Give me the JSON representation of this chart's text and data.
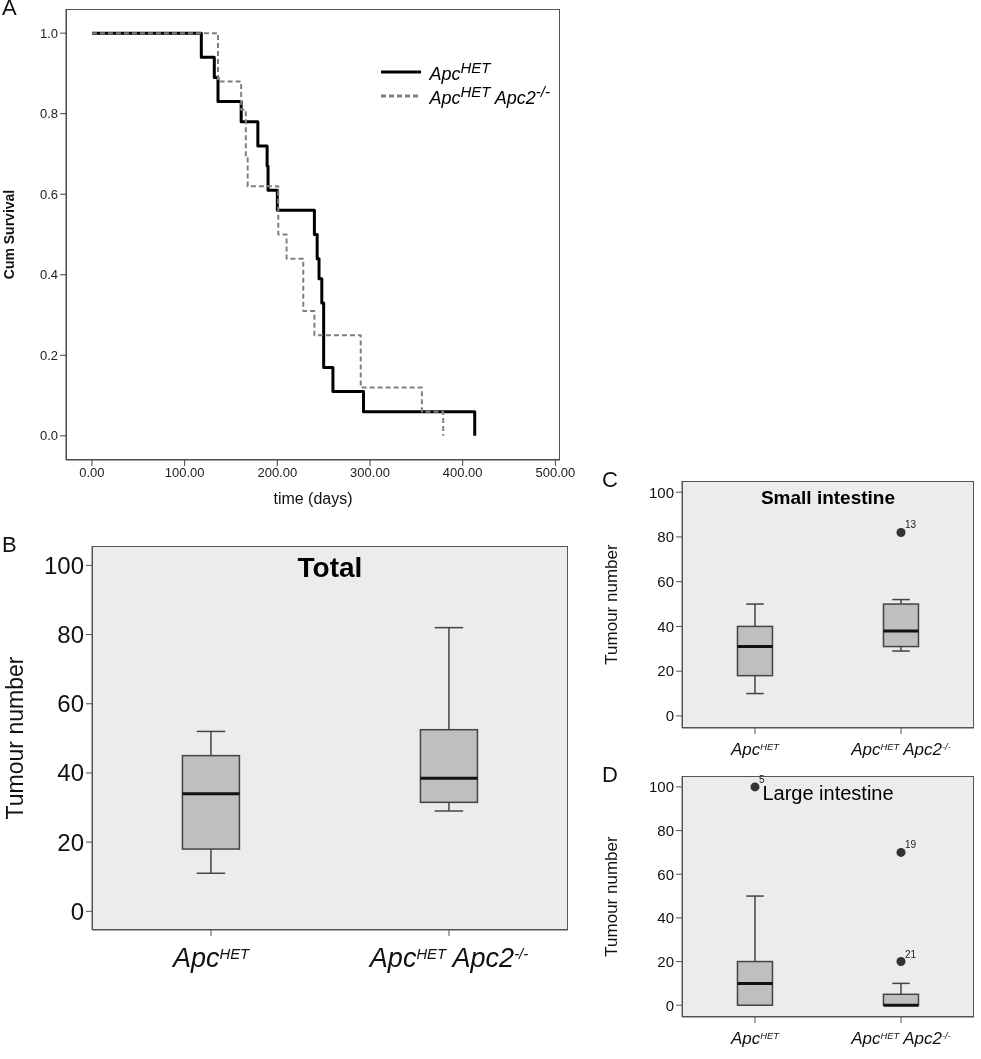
{
  "chart_data": [
    {
      "type": "step",
      "annotations": [
        "A"
      ],
      "xlabel": "time (days)",
      "ylabel": "Cum Survival",
      "xlim": [
        -28,
        505
      ],
      "ylim": [
        -0.06,
        1.06
      ],
      "xticks": [
        {
          "value": 0,
          "label": "0.00"
        },
        {
          "value": 100,
          "label": "100.00"
        },
        {
          "value": 200,
          "label": "200.00"
        },
        {
          "value": 300,
          "label": "300.00"
        },
        {
          "value": 400,
          "label": "400.00"
        },
        {
          "value": 500,
          "label": "500.00"
        }
      ],
      "yticks": [
        {
          "value": 0,
          "label": "0.0"
        },
        {
          "value": 0.2,
          "label": "0.2"
        },
        {
          "value": 0.4,
          "label": "0.4"
        },
        {
          "value": 0.6,
          "label": "0.6"
        },
        {
          "value": 0.8,
          "label": "0.8"
        },
        {
          "value": 1,
          "label": "1.0"
        }
      ],
      "legend": "top right",
      "series": [
        {
          "name": "Apc$^{HET}$",
          "color": "#000000",
          "line_style": "solid",
          "x": [
            0,
            118,
            132,
            136,
            161,
            179,
            189,
            190,
            200,
            240,
            243,
            245,
            248,
            250,
            260,
            293,
            413
          ],
          "values": [
            1,
            0.94,
            0.89,
            0.83,
            0.78,
            0.72,
            0.67,
            0.61,
            0.56,
            0.5,
            0.44,
            0.39,
            0.33,
            0.17,
            0.11,
            0.06,
            0
          ]
        },
        {
          "name": "Apc$^{HET}$ Apc2$^{-/-}$",
          "color": "#808080",
          "line_style": "dashed",
          "x": [
            0,
            136,
            161,
            166,
            168,
            201,
            210,
            228,
            240,
            290,
            356,
            379
          ],
          "values": [
            1,
            0.88,
            0.81,
            0.69,
            0.62,
            0.5,
            0.44,
            0.31,
            0.25,
            0.12,
            0.06,
            0
          ]
        }
      ]
    },
    {
      "type": "box",
      "title": "Total",
      "annotations": [
        "B"
      ],
      "ylabel": "Tumour number",
      "categories": [
        "Apc$^{HET}$",
        "Apc$^{HET}$ Apc2$^{-/-}$"
      ],
      "ylim": [
        -5.4,
        105.6
      ],
      "yticks": [
        0,
        20,
        40,
        60,
        80,
        100
      ],
      "series": [
        {
          "color": "#bfbfbf",
          "boxes": [
            {
              "low": 11,
              "q1": 18,
              "median": 34,
              "q3": 45,
              "high": 52
            },
            {
              "low": 29,
              "q1": 31.5,
              "median": 38.5,
              "q3": 52.5,
              "high": 82
            }
          ]
        }
      ]
    },
    {
      "type": "box",
      "title": "Small intestine",
      "annotations": [
        "C",
        "13"
      ],
      "ylabel": "Tumour number",
      "categories": [
        "Apc$^{HET}$",
        "Apc$^{HET}$ Apc2$^{-/-}$"
      ],
      "ylim": [
        -5.4,
        105
      ],
      "yticks": [
        0,
        20,
        40,
        60,
        80,
        100
      ],
      "series": [
        {
          "color": "#bfbfbf",
          "boxes": [
            {
              "low": 10,
              "q1": 18,
              "median": 31,
              "q3": 40,
              "high": 50
            },
            {
              "low": 29,
              "q1": 31,
              "median": 38,
              "q3": 50,
              "high": 52,
              "outliers": [
                82
              ]
            }
          ]
        }
      ]
    },
    {
      "type": "box",
      "title": "Large intestine",
      "annotations": [
        "D",
        "5",
        "21",
        "19"
      ],
      "ylabel": "Tumour number",
      "categories": [
        "Apc$^{HET}$",
        "Apc$^{HET}$ Apc2$^{-/-}$"
      ],
      "ylim": [
        -5.4,
        105
      ],
      "yticks": [
        0,
        20,
        40,
        60,
        80,
        100
      ],
      "series": [
        {
          "color": "#bfbfbf",
          "boxes": [
            {
              "low": 0,
              "q1": 0,
              "median": 10,
              "q3": 20,
              "high": 50,
              "outliers": [
                100
              ]
            },
            {
              "low": 0,
              "q1": 0,
              "median": 0,
              "q3": 5,
              "high": 10,
              "outliers": [
                20,
                70
              ]
            }
          ]
        }
      ]
    }
  ]
}
